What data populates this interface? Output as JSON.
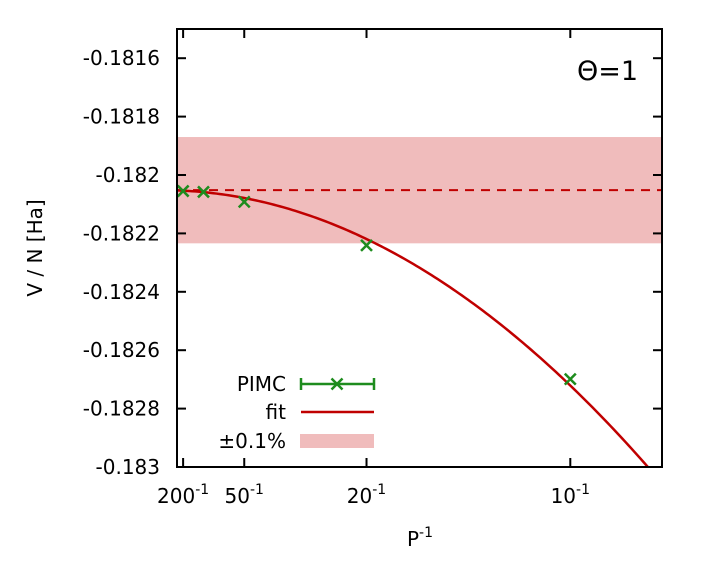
{
  "chart_data": {
    "type": "line",
    "annotation": "Θ=1",
    "xlabel": "P",
    "xlabel_exp": "-1",
    "ylabel": "V / N [Ha]",
    "xlim": [
      0.0035,
      0.1225
    ],
    "ylim": [
      -0.183,
      -0.1815
    ],
    "xticks": [
      {
        "value": 0.005,
        "base": "200",
        "exp": "-1"
      },
      {
        "value": 0.02,
        "base": "50",
        "exp": "-1"
      },
      {
        "value": 0.05,
        "base": "20",
        "exp": "-1"
      },
      {
        "value": 0.1,
        "base": "10",
        "exp": "-1"
      }
    ],
    "yticks": [
      {
        "value": -0.1816,
        "label": "-0.1816"
      },
      {
        "value": -0.1818,
        "label": "-0.1818"
      },
      {
        "value": -0.182,
        "label": "-0.182"
      },
      {
        "value": -0.1822,
        "label": "-0.1822"
      },
      {
        "value": -0.1824,
        "label": "-0.1824"
      },
      {
        "value": -0.1826,
        "label": "-0.1826"
      },
      {
        "value": -0.1828,
        "label": "-0.1828"
      },
      {
        "value": -0.183,
        "label": "-0.183"
      }
    ],
    "series": [
      {
        "name": "PIMC",
        "kind": "points",
        "color": "#1e8c1e",
        "x": [
          0.005,
          0.01,
          0.02,
          0.05,
          0.1
        ],
        "y": [
          -0.182055,
          -0.182058,
          -0.182092,
          -0.182241,
          -0.182699
        ]
      },
      {
        "name": "fit",
        "kind": "curve",
        "color": "#c00000",
        "intercept": -0.182052,
        "coefficient": -0.0669,
        "x_start": 0.0035,
        "x_end": 0.1225
      }
    ],
    "reference": {
      "value": -0.182052,
      "style": "dashed",
      "color": "#c00000"
    },
    "band": {
      "name": "±0.1%",
      "min": -0.182234,
      "max": -0.18187,
      "color": "#f0bcbc"
    },
    "legend": {
      "position": "bottom-left",
      "entries": [
        "PIMC",
        "fit",
        "±0.1%"
      ]
    }
  }
}
